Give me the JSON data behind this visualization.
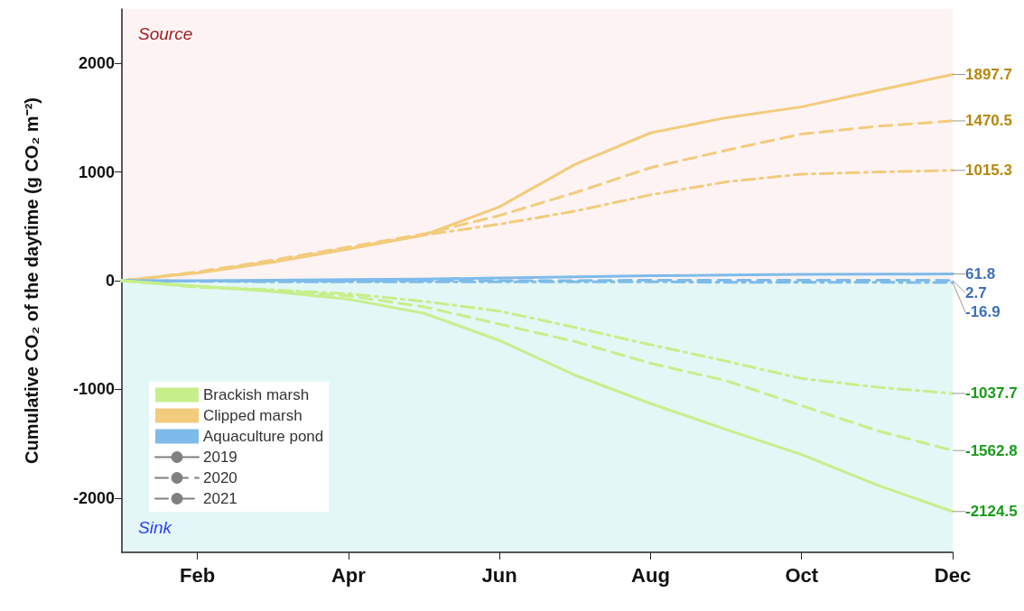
{
  "chart_data": {
    "type": "line",
    "ylabel": "Cumulative CO₂ of the daytime (g CO₂ m⁻²)",
    "categories": [
      null,
      "Feb",
      null,
      "Apr",
      null,
      "Jun",
      null,
      "Aug",
      null,
      "Oct",
      null,
      "Dec"
    ],
    "ylim": [
      -2500,
      2500
    ],
    "yticks": [
      -2000,
      -1000,
      0,
      1000,
      2000
    ],
    "grid": false,
    "marker": "none",
    "legend": "bottom left",
    "bands": [
      {
        "axis": "y",
        "from": 0,
        "to": 2500,
        "label": "Source",
        "color": "#fdf3f3"
      },
      {
        "axis": "y",
        "from": -2500,
        "to": 0,
        "label": "Sink",
        "color": "#e3f7f6"
      }
    ],
    "series": [
      {
        "color": "#f2cb7c",
        "line_style": "solid",
        "values": [
          0,
          70,
          170,
          290,
          420,
          680,
          1070,
          1360,
          1500,
          1600,
          1750,
          1897.7
        ],
        "value_labels": [
          null,
          null,
          null,
          null,
          null,
          null,
          null,
          null,
          null,
          null,
          null,
          "1897.7"
        ]
      },
      {
        "color": "#f2cb7c",
        "line_style": "dashed",
        "values": [
          0,
          80,
          190,
          310,
          430,
          600,
          810,
          1040,
          1200,
          1350,
          1420,
          1470.5
        ],
        "value_labels": [
          null,
          null,
          null,
          null,
          null,
          null,
          null,
          null,
          null,
          null,
          null,
          "1470.5"
        ]
      },
      {
        "color": "#f2cb7c",
        "line_style": "dashdot",
        "values": [
          0,
          75,
          180,
          300,
          420,
          520,
          640,
          790,
          910,
          980,
          1000,
          1015.3
        ],
        "value_labels": [
          null,
          null,
          null,
          null,
          null,
          null,
          null,
          null,
          null,
          null,
          null,
          "1015.3"
        ]
      },
      {
        "color": "#7dbbea",
        "line_style": "solid",
        "values": [
          0,
          0,
          5,
          10,
          15,
          25,
          35,
          45,
          52,
          58,
          60,
          61.8
        ],
        "value_labels": [
          null,
          null,
          null,
          null,
          null,
          null,
          null,
          null,
          null,
          null,
          null,
          "61.8"
        ]
      },
      {
        "color": "#7dbbea",
        "line_style": "dashed",
        "values": [
          0,
          -5,
          -5,
          -5,
          0,
          0,
          0,
          5,
          5,
          5,
          5,
          2.7
        ],
        "value_labels": [
          null,
          null,
          null,
          null,
          null,
          null,
          null,
          null,
          null,
          null,
          null,
          "2.7"
        ]
      },
      {
        "color": "#7dbbea",
        "line_style": "dashdot",
        "values": [
          0,
          -5,
          -10,
          -10,
          -10,
          -10,
          -10,
          -10,
          -15,
          -15,
          -15,
          -16.9
        ],
        "value_labels": [
          null,
          null,
          null,
          null,
          null,
          null,
          null,
          null,
          null,
          null,
          null,
          "-16.9"
        ]
      },
      {
        "color": "#c6ef8a",
        "line_style": "solid",
        "values": [
          0,
          -50,
          -100,
          -170,
          -300,
          -550,
          -870,
          -1130,
          -1370,
          -1600,
          -1880,
          -2124.5
        ],
        "value_labels": [
          null,
          null,
          null,
          null,
          null,
          null,
          null,
          null,
          null,
          null,
          null,
          "-2124.5"
        ]
      },
      {
        "color": "#c6ef8a",
        "line_style": "dashed",
        "values": [
          0,
          -60,
          -90,
          -140,
          -240,
          -400,
          -560,
          -760,
          -920,
          -1150,
          -1380,
          -1562.8
        ],
        "value_labels": [
          null,
          null,
          null,
          null,
          null,
          null,
          null,
          null,
          null,
          null,
          null,
          "-1562.8"
        ]
      },
      {
        "color": "#c6ef8a",
        "line_style": "dashdot",
        "values": [
          0,
          -55,
          -85,
          -120,
          -190,
          -280,
          -430,
          -590,
          -740,
          -900,
          -980,
          -1037.7
        ],
        "value_labels": [
          null,
          null,
          null,
          null,
          null,
          null,
          null,
          null,
          null,
          null,
          null,
          "-1037.7"
        ]
      },
      {
        "name": "Brackish marsh",
        "color": "#c6ef8a",
        "values": [
          null,
          null,
          null,
          null,
          null,
          null,
          null,
          null,
          null,
          null,
          null,
          null
        ]
      },
      {
        "name": "Clipped marsh",
        "color": "#f2cb7c",
        "values": [
          null,
          null,
          null,
          null,
          null,
          null,
          null,
          null,
          null,
          null,
          null,
          null
        ]
      },
      {
        "name": "Aquaculture pond",
        "color": "#7dbbea",
        "values": [
          null,
          null,
          null,
          null,
          null,
          null,
          null,
          null,
          null,
          null,
          null,
          null
        ]
      },
      {
        "name": "2019",
        "color": "#808080",
        "line_style": "solid",
        "values": [
          null,
          null,
          null,
          null,
          null,
          null,
          null,
          null,
          null,
          null,
          null,
          null
        ]
      },
      {
        "name": "2020",
        "color": "#808080",
        "line_style": "dashed",
        "values": [
          null,
          null,
          null,
          null,
          null,
          null,
          null,
          null,
          null,
          null,
          null,
          null
        ]
      },
      {
        "name": "2021",
        "color": "#808080",
        "line_style": "dashdot",
        "values": [
          null,
          null,
          null,
          null,
          null,
          null,
          null,
          null,
          null,
          null,
          null,
          null
        ]
      }
    ]
  }
}
